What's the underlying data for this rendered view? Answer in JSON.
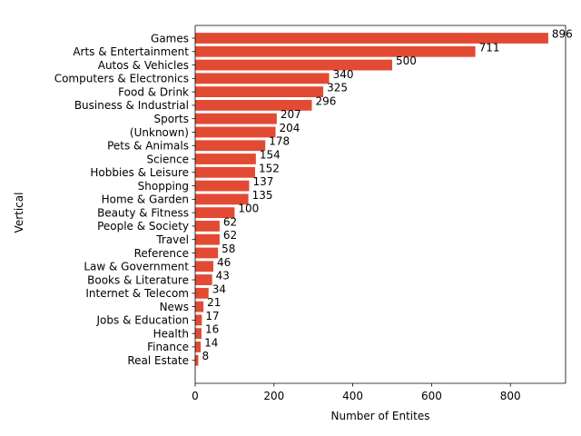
{
  "chart_data": {
    "type": "bar",
    "orientation": "horizontal",
    "xlabel": "Number of Entites",
    "ylabel": "Vertical",
    "xlim": [
      0,
      940
    ],
    "x_ticks": [
      0,
      200,
      400,
      600,
      800
    ],
    "grid": false,
    "bar_color": "#e24a33",
    "categories": [
      "Games",
      "Arts & Entertainment",
      "Autos & Vehicles",
      "Computers & Electronics",
      "Food & Drink",
      "Business & Industrial",
      "Sports",
      "(Unknown)",
      "Pets & Animals",
      "Science",
      "Hobbies & Leisure",
      "Shopping",
      "Home & Garden",
      "Beauty & Fitness",
      "People & Society",
      "Travel",
      "Reference",
      "Law & Government",
      "Books & Literature",
      "Internet & Telecom",
      "News",
      "Jobs & Education",
      "Health",
      "Finance",
      "Real Estate"
    ],
    "values": [
      896,
      711,
      500,
      340,
      325,
      296,
      207,
      204,
      178,
      154,
      152,
      137,
      135,
      100,
      62,
      62,
      58,
      46,
      43,
      34,
      21,
      17,
      16,
      14,
      8
    ]
  }
}
